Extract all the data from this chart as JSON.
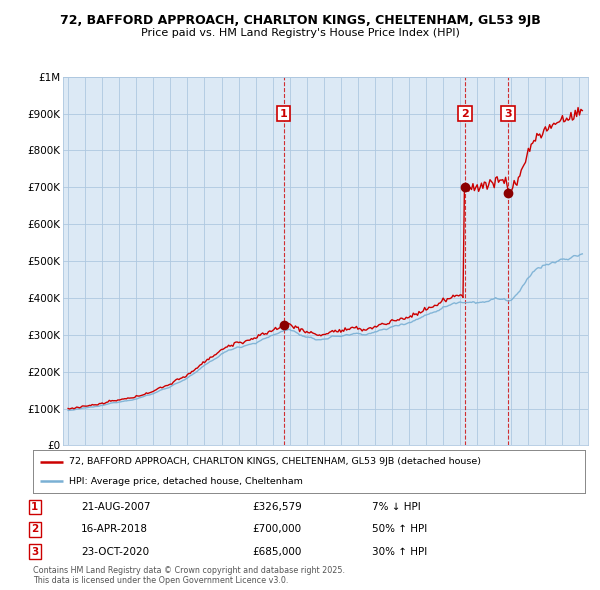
{
  "title1": "72, BAFFORD APPROACH, CHARLTON KINGS, CHELTENHAM, GL53 9JB",
  "title2": "Price paid vs. HM Land Registry's House Price Index (HPI)",
  "ylabel_ticks": [
    "£0",
    "£100K",
    "£200K",
    "£300K",
    "£400K",
    "£500K",
    "£600K",
    "£700K",
    "£800K",
    "£900K",
    "£1M"
  ],
  "ytick_values": [
    0,
    100000,
    200000,
    300000,
    400000,
    500000,
    600000,
    700000,
    800000,
    900000,
    1000000
  ],
  "xlim_start": 1994.7,
  "xlim_end": 2025.5,
  "ylim_min": 0,
  "ylim_max": 1000000,
  "sale_markers": [
    {
      "num": 1,
      "year": 2007.64,
      "price": 326579,
      "date": "21-AUG-2007",
      "label_price": "£326,579",
      "pct": "7%",
      "dir": "↓"
    },
    {
      "num": 2,
      "year": 2018.29,
      "price": 700000,
      "date": "16-APR-2018",
      "label_price": "£700,000",
      "pct": "50%",
      "dir": "↑"
    },
    {
      "num": 3,
      "year": 2020.81,
      "price": 685000,
      "date": "23-OCT-2020",
      "label_price": "£685,000",
      "pct": "30%",
      "dir": "↑"
    }
  ],
  "vline_color": "#cc0000",
  "hpi_color": "#7ab0d4",
  "price_color": "#cc0000",
  "chart_bg": "#dce9f5",
  "background_color": "#ffffff",
  "grid_color": "#aec8e0",
  "legend_label_price": "72, BAFFORD APPROACH, CHARLTON KINGS, CHELTENHAM, GL53 9JB (detached house)",
  "legend_label_hpi": "HPI: Average price, detached house, Cheltenham",
  "footnote": "Contains HM Land Registry data © Crown copyright and database right 2025.\nThis data is licensed under the Open Government Licence v3.0."
}
